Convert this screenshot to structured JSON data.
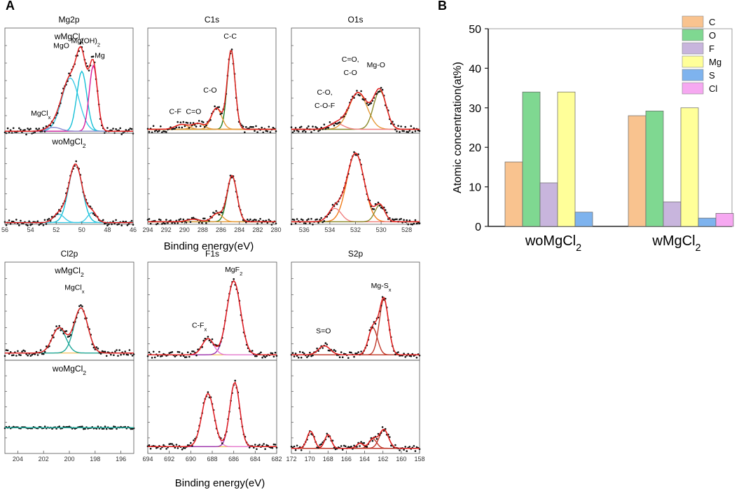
{
  "panel_labels": {
    "a": "A",
    "b": "B"
  },
  "xps": {
    "xlabel": "Binding energy(eV)",
    "row_labels": {
      "w": {
        "base": "wMgCl",
        "sub": "2"
      },
      "wo": {
        "base": "woMgCl",
        "sub": "2"
      }
    },
    "panels": [
      {
        "key": "mg2p",
        "title": "Mg2p",
        "xlim": [
          56,
          46
        ],
        "ticks": [
          "56",
          "54",
          "52",
          "50",
          "48",
          "46"
        ],
        "rows": [
          {
            "cond": "w",
            "baseline": 0.02,
            "components": [
              {
                "color": "#3cc9e6",
                "center": 50.9,
                "width": 0.95,
                "amp": 0.55
              },
              {
                "color": "#13bfd6",
                "center": 50.0,
                "width": 0.55,
                "amp": 0.62
              },
              {
                "color": "#d81b9c",
                "center": 49.1,
                "width": 0.45,
                "amp": 0.68
              },
              {
                "color": "#8a8ad0",
                "center": 52.2,
                "width": 0.8,
                "amp": 0.04
              }
            ],
            "annotations": [
              {
                "text": "MgO",
                "sub": "",
                "x": 51.6,
                "y": 0.88
              },
              {
                "text": "Mg(OH)",
                "sub": "2",
                "x": 49.7,
                "y": 0.93
              },
              {
                "text": "Mg",
                "sub": "",
                "x": 48.6,
                "y": 0.78
              },
              {
                "text": "MgCl",
                "sub": "x",
                "x": 53.2,
                "y": 0.18
              }
            ]
          },
          {
            "cond": "wo",
            "baseline": 0.02,
            "components": [
              {
                "color": "#13bfd6",
                "center": 50.5,
                "width": 0.75,
                "amp": 0.7
              },
              {
                "color": "#3cc9e6",
                "center": 51.8,
                "width": 0.6,
                "amp": 0.1
              },
              {
                "color": "#3cc9e6",
                "center": 49.2,
                "width": 0.5,
                "amp": 0.12
              }
            ],
            "annotations": []
          }
        ]
      },
      {
        "key": "c1s",
        "title": "C1s",
        "xlim": [
          294,
          280
        ],
        "ticks": [
          "294",
          "292",
          "290",
          "288",
          "286",
          "284",
          "282",
          "280"
        ],
        "rows": [
          {
            "cond": "w",
            "baseline": 0.04,
            "components": [
              {
                "color": "#1f7a1f",
                "center": 284.9,
                "width": 0.6,
                "amp": 0.82
              },
              {
                "color": "#e69b3a",
                "center": 286.5,
                "width": 0.8,
                "amp": 0.22
              },
              {
                "color": "#e69b3a",
                "center": 288.5,
                "width": 0.9,
                "amp": 0.06
              },
              {
                "color": "#e69b3a",
                "center": 290.3,
                "width": 1.0,
                "amp": 0.05
              }
            ],
            "annotations": [
              {
                "text": "C-C",
                "sub": "",
                "x": 285.0,
                "y": 0.98
              },
              {
                "text": "C-O",
                "sub": "",
                "x": 287.2,
                "y": 0.42
              },
              {
                "text": "C=O",
                "sub": "",
                "x": 289.0,
                "y": 0.2
              },
              {
                "text": "C-F",
                "sub": "",
                "x": 291.0,
                "y": 0.2
              }
            ]
          },
          {
            "cond": "wo",
            "baseline": 0.03,
            "components": [
              {
                "color": "#1f7a1f",
                "center": 284.8,
                "width": 0.75,
                "amp": 0.55
              },
              {
                "color": "#e69b3a",
                "center": 286.4,
                "width": 0.8,
                "amp": 0.1
              },
              {
                "color": "#e69b3a",
                "center": 289.0,
                "width": 1.0,
                "amp": 0.03
              }
            ],
            "annotations": []
          }
        ]
      },
      {
        "key": "o1s",
        "title": "O1s",
        "xlim": [
          537,
          527
        ],
        "ticks": [
          "536",
          "534",
          "532",
          "530",
          "528"
        ],
        "rows": [
          {
            "cond": "w",
            "baseline": 0.04,
            "components": [
              {
                "color": "#e69b3a",
                "center": 531.8,
                "width": 1.0,
                "amp": 0.38
              },
              {
                "color": "#8a8a2a",
                "center": 530.1,
                "width": 0.7,
                "amp": 0.4
              },
              {
                "color": "#f08080",
                "center": 533.5,
                "width": 0.8,
                "amp": 0.06
              }
            ],
            "annotations": [
              {
                "text": "C=O,",
                "sub": "",
                "x": 532.4,
                "y": 0.74
              },
              {
                "text": "C-O",
                "sub": "",
                "x": 532.4,
                "y": 0.6
              },
              {
                "text": "Mg-O",
                "sub": "",
                "x": 530.4,
                "y": 0.68
              },
              {
                "text": "C-O,",
                "sub": "",
                "x": 534.4,
                "y": 0.4
              },
              {
                "text": "C-O-F",
                "sub": "",
                "x": 534.4,
                "y": 0.26
              }
            ]
          },
          {
            "cond": "wo",
            "baseline": 0.03,
            "components": [
              {
                "color": "#f07d1a",
                "center": 532.0,
                "width": 0.95,
                "amp": 0.82
              },
              {
                "color": "#f08080",
                "center": 533.6,
                "width": 0.7,
                "amp": 0.16
              },
              {
                "color": "#8a8a2a",
                "center": 530.1,
                "width": 0.55,
                "amp": 0.2
              }
            ],
            "annotations": []
          }
        ]
      },
      {
        "key": "cl2p",
        "title": "Cl2p",
        "xlim": [
          205,
          195
        ],
        "ticks": [
          "204",
          "202",
          "200",
          "198",
          "196"
        ],
        "rows": [
          {
            "cond": "w",
            "baseline": 0.08,
            "components": [
              {
                "color": "#1fa89a",
                "center": 199.1,
                "width": 0.75,
                "amp": 0.5
              },
              {
                "color": "#1fa89a",
                "center": 200.8,
                "width": 0.75,
                "amp": 0.28
              }
            ],
            "annotations": [
              {
                "text": "MgCl",
                "sub": "x",
                "x": 199.6,
                "y": 0.78
              }
            ]
          },
          {
            "cond": "wo",
            "baseline": 0.3,
            "components": [],
            "annotations": []
          }
        ]
      },
      {
        "key": "f1s",
        "title": "F1s",
        "xlim": [
          694,
          682
        ],
        "ticks": [
          "694",
          "692",
          "690",
          "688",
          "686",
          "684",
          "682"
        ],
        "rows": [
          {
            "cond": "w",
            "baseline": 0.06,
            "components": [
              {
                "color": "#9a2fb3",
                "center": 686.0,
                "width": 0.9,
                "amp": 0.82
              },
              {
                "color": "#e67ad6",
                "center": 688.4,
                "width": 0.75,
                "amp": 0.18
              }
            ],
            "annotations": [
              {
                "text": "MgF",
                "sub": "2",
                "x": 686.0,
                "y": 0.98
              },
              {
                "text": "C-F",
                "sub": "x",
                "x": 689.2,
                "y": 0.36
              }
            ]
          },
          {
            "cond": "wo",
            "baseline": 0.08,
            "components": [
              {
                "color": "#9a2fb3",
                "center": 685.9,
                "width": 0.65,
                "amp": 0.75
              },
              {
                "color": "#e67ad6",
                "center": 688.4,
                "width": 0.8,
                "amp": 0.62
              }
            ],
            "annotations": []
          }
        ]
      },
      {
        "key": "s2p",
        "title": "S2p",
        "xlim": [
          172,
          158
        ],
        "ticks": [
          "172",
          "170",
          "168",
          "166",
          "164",
          "162",
          "160",
          "158"
        ],
        "rows": [
          {
            "cond": "w",
            "baseline": 0.06,
            "components": [
              {
                "color": "#c0392b",
                "center": 161.9,
                "width": 0.7,
                "amp": 0.62
              },
              {
                "color": "#c0392b",
                "center": 163.1,
                "width": 0.7,
                "amp": 0.3
              },
              {
                "color": "#c0392b",
                "center": 168.4,
                "width": 0.9,
                "amp": 0.1
              }
            ],
            "annotations": [
              {
                "text": "Mg-S",
                "sub": "x",
                "x": 162.2,
                "y": 0.8
              },
              {
                "text": "S=O",
                "sub": "",
                "x": 168.5,
                "y": 0.3
              }
            ]
          },
          {
            "cond": "wo",
            "baseline": 0.06,
            "components": [
              {
                "color": "#c0392b",
                "center": 161.9,
                "width": 0.7,
                "amp": 0.22
              },
              {
                "color": "#c0392b",
                "center": 163.1,
                "width": 0.6,
                "amp": 0.11
              },
              {
                "color": "#c0392b",
                "center": 164.5,
                "width": 0.5,
                "amp": 0.06
              },
              {
                "color": "#c0392b",
                "center": 168.0,
                "width": 0.5,
                "amp": 0.16
              },
              {
                "color": "#c0392b",
                "center": 169.9,
                "width": 0.55,
                "amp": 0.2
              }
            ],
            "annotations": []
          }
        ]
      }
    ]
  },
  "chart_data": {
    "type": "bar",
    "title": "",
    "xlabel": "",
    "ylabel": "Atomic concentration(at%)",
    "ylim": [
      0,
      50
    ],
    "yticks": [
      "0",
      "10",
      "20",
      "30",
      "40",
      "50"
    ],
    "categories": [
      {
        "base": "woMgCl",
        "sub": "2"
      },
      {
        "base": "wMgCl",
        "sub": "2"
      }
    ],
    "series": [
      {
        "name": "C",
        "color": "#f9c38f",
        "values": [
          16.3,
          28.0
        ]
      },
      {
        "name": "O",
        "color": "#7fd891",
        "values": [
          34.0,
          29.2
        ]
      },
      {
        "name": "F",
        "color": "#c8b5dd",
        "values": [
          11.0,
          6.2
        ]
      },
      {
        "name": "Mg",
        "color": "#ffff99",
        "values": [
          34.0,
          30.0
        ]
      },
      {
        "name": "S",
        "color": "#7eb3ee",
        "values": [
          3.6,
          2.1
        ]
      },
      {
        "name": "Cl",
        "color": "#f6a8f1",
        "values": [
          0,
          3.3
        ]
      }
    ],
    "legend": "top-right"
  }
}
